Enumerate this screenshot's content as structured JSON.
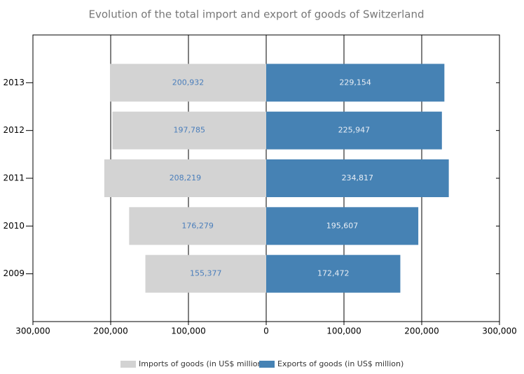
{
  "chart_data": {
    "type": "diverging_bar",
    "title": "Evolution of the total import and export of goods of Switzerland",
    "categories": [
      "2013",
      "2012",
      "2011",
      "2010",
      "2009"
    ],
    "series": [
      {
        "name": "Imports of goods (in US$ million)",
        "color": "#d3d3d3",
        "label_color": "#4a7ebb",
        "values": [
          -200932,
          -197785,
          -208219,
          -176279,
          -155377
        ],
        "value_labels": [
          "200,932",
          "197,785",
          "208,219",
          "176,279",
          "155,377"
        ]
      },
      {
        "name": "Exports of goods (in US$ million)",
        "color": "#4682b4",
        "label_color": "#e8eef5",
        "values": [
          229154,
          225947,
          234817,
          195607,
          172472
        ],
        "value_labels": [
          "229,154",
          "225,947",
          "234,817",
          "195,607",
          "172,472"
        ]
      }
    ],
    "xlim": [
      -300000,
      300000
    ],
    "xticks": [
      {
        "value": -300000,
        "label": "300,000"
      },
      {
        "value": -200000,
        "label": "200,000"
      },
      {
        "value": -100000,
        "label": "100,000"
      },
      0,
      {
        "value": 100000,
        "label": "100,000"
      },
      {
        "value": 200000,
        "label": "200,000"
      },
      {
        "value": 300000,
        "label": "300,000"
      }
    ],
    "grid": true,
    "legend": "bottom"
  }
}
